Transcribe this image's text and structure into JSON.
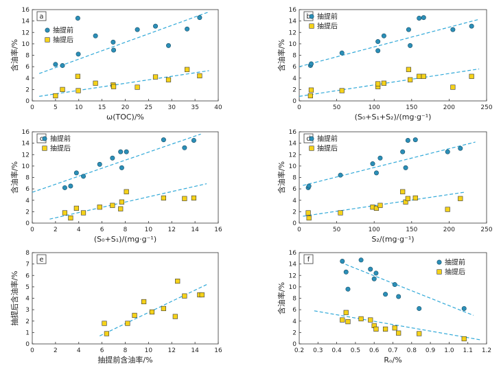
{
  "colors": {
    "before": "#2b8fb8",
    "after": "#f5d21a",
    "trend": "#2fa8d8",
    "axis": "#333333"
  },
  "chart_data": [
    {
      "id": "a",
      "type": "scatter",
      "xlabel": "ω(TOC)/%",
      "ylabel": "含油率/%",
      "xlim": [
        0,
        40
      ],
      "ylim": [
        0,
        16
      ],
      "xticks": [
        "0",
        "5",
        "10",
        "15",
        "20",
        "25",
        "30",
        "35",
        "40"
      ],
      "yticks": [
        "0",
        "2",
        "4",
        "6",
        "8",
        "10",
        "12",
        "14",
        "16"
      ],
      "legend": "left",
      "series": [
        {
          "name": "抽提前",
          "kind": "before",
          "points": [
            [
              5,
              6.4
            ],
            [
              6.5,
              6.2
            ],
            [
              9.8,
              14.5
            ],
            [
              9.9,
              8.2
            ],
            [
              13.6,
              11.4
            ],
            [
              17.4,
              10.3
            ],
            [
              17.5,
              8.9
            ],
            [
              22.6,
              12.5
            ],
            [
              26.5,
              13.1
            ],
            [
              29.3,
              9.7
            ],
            [
              33.3,
              12.6
            ],
            [
              36,
              14.6
            ]
          ],
          "trend": [
            [
              1.5,
              4.8
            ],
            [
              38,
              15.6
            ]
          ]
        },
        {
          "name": "抽提后",
          "kind": "after",
          "points": [
            [
              5,
              0.9
            ],
            [
              6.5,
              2
            ],
            [
              9.8,
              4.3
            ],
            [
              9.9,
              1.8
            ],
            [
              13.6,
              3.1
            ],
            [
              17.4,
              2.8
            ],
            [
              17.5,
              2.5
            ],
            [
              22.6,
              2.4
            ],
            [
              26.5,
              4.2
            ],
            [
              29.3,
              3.7
            ],
            [
              33.3,
              5.5
            ],
            [
              36,
              4.4
            ]
          ],
          "trend": [
            [
              1.5,
              0.8
            ],
            [
              38,
              5.3
            ]
          ]
        }
      ]
    },
    {
      "id": "b",
      "type": "scatter",
      "xlabel": "(S₀+S₁+S₂)/(mg·g⁻¹)",
      "ylabel": "含油率/%",
      "xlim": [
        0,
        250
      ],
      "ylim": [
        0,
        16
      ],
      "xticks": [
        "0",
        "50",
        "100",
        "150",
        "200",
        "250"
      ],
      "yticks": [
        "0",
        "2",
        "4",
        "6",
        "8",
        "10",
        "12",
        "14",
        "16"
      ],
      "legend": "top-left",
      "series": [
        {
          "name": "抽提前",
          "kind": "before",
          "points": [
            [
              15,
              6.2
            ],
            [
              16,
              6.5
            ],
            [
              57,
              8.4
            ],
            [
              105,
              8.8
            ],
            [
              105,
              10.4
            ],
            [
              113,
              11.4
            ],
            [
              146,
              12.5
            ],
            [
              148,
              9.7
            ],
            [
              160,
              14.5
            ],
            [
              166,
              14.6
            ],
            [
              205,
              12.5
            ],
            [
              230,
              13.1
            ]
          ],
          "trend": [
            [
              0,
              6
            ],
            [
              240,
              14.3
            ]
          ]
        },
        {
          "name": "抽提后",
          "kind": "after",
          "points": [
            [
              15,
              0.9
            ],
            [
              16,
              1.9
            ],
            [
              57,
              1.8
            ],
            [
              105,
              2.5
            ],
            [
              105,
              3
            ],
            [
              113,
              3.1
            ],
            [
              146,
              5.5
            ],
            [
              148,
              3.7
            ],
            [
              160,
              4.3
            ],
            [
              166,
              4.3
            ],
            [
              205,
              2.4
            ],
            [
              230,
              4.3
            ]
          ],
          "trend": [
            [
              0,
              0.8
            ],
            [
              240,
              5.6
            ]
          ]
        }
      ]
    },
    {
      "id": "c",
      "type": "scatter",
      "xlabel": "(S₀+S₁)/(mg·g⁻¹)",
      "ylabel": "含油率/%",
      "xlim": [
        0,
        16
      ],
      "ylim": [
        0,
        16
      ],
      "xticks": [
        "0",
        "2",
        "4",
        "6",
        "8",
        "10",
        "12",
        "14",
        "16"
      ],
      "yticks": [
        "0",
        "2",
        "4",
        "6",
        "8",
        "10",
        "12",
        "14",
        "16"
      ],
      "legend": "top-left",
      "series": [
        {
          "name": "抽提前",
          "kind": "before",
          "points": [
            [
              2.8,
              6.2
            ],
            [
              3.3,
              6.5
            ],
            [
              3.8,
              8.8
            ],
            [
              4.4,
              8.2
            ],
            [
              5.8,
              10.3
            ],
            [
              6.9,
              11.4
            ],
            [
              7.6,
              12.5
            ],
            [
              7.7,
              9.7
            ],
            [
              8.1,
              12.5
            ],
            [
              11.3,
              14.6
            ],
            [
              13.1,
              13.2
            ],
            [
              13.9,
              14.5
            ]
          ],
          "trend": [
            [
              0,
              5.4
            ],
            [
              14.5,
              15.6
            ]
          ]
        },
        {
          "name": "抽提后",
          "kind": "after",
          "points": [
            [
              2.8,
              1.8
            ],
            [
              3.3,
              0.9
            ],
            [
              3.8,
              2.6
            ],
            [
              4.4,
              1.8
            ],
            [
              5.8,
              2.8
            ],
            [
              6.9,
              3.1
            ],
            [
              7.6,
              2.5
            ],
            [
              7.7,
              3.7
            ],
            [
              8.1,
              5.5
            ],
            [
              11.3,
              4.4
            ],
            [
              13.1,
              4.3
            ],
            [
              13.9,
              4.4
            ]
          ],
          "trend": [
            [
              1.5,
              0.7
            ],
            [
              15,
              6.9
            ]
          ]
        }
      ]
    },
    {
      "id": "d",
      "type": "scatter",
      "xlabel": "S₂/(mg·g⁻¹)",
      "ylabel": "含油率/%",
      "xlim": [
        0,
        250
      ],
      "ylim": [
        0,
        16
      ],
      "xticks": [
        "0",
        "50",
        "100",
        "150",
        "200",
        "250"
      ],
      "yticks": [
        "0",
        "2",
        "4",
        "6",
        "8",
        "10",
        "12",
        "14",
        "16"
      ],
      "legend": "top-left",
      "series": [
        {
          "name": "抽提前",
          "kind": "before",
          "points": [
            [
              12,
              6.2
            ],
            [
              13,
              6.5
            ],
            [
              55,
              8.4
            ],
            [
              98,
              10.4
            ],
            [
              103,
              8.8
            ],
            [
              108,
              11.4
            ],
            [
              138,
              12.5
            ],
            [
              142,
              9.7
            ],
            [
              145,
              14.5
            ],
            [
              155,
              14.6
            ],
            [
              198,
              12.5
            ],
            [
              215,
              13.1
            ]
          ],
          "trend": [
            [
              5,
              6.6
            ],
            [
              235,
              14.2
            ]
          ]
        },
        {
          "name": "抽提后",
          "kind": "after",
          "points": [
            [
              12,
              1.8
            ],
            [
              13,
              0.9
            ],
            [
              55,
              1.8
            ],
            [
              98,
              2.8
            ],
            [
              103,
              2.6
            ],
            [
              108,
              3.1
            ],
            [
              138,
              5.5
            ],
            [
              142,
              3.7
            ],
            [
              145,
              4.3
            ],
            [
              155,
              4.4
            ],
            [
              198,
              2.4
            ],
            [
              215,
              4.3
            ]
          ],
          "trend": [
            [
              5,
              1.2
            ],
            [
              220,
              5.4
            ]
          ]
        }
      ]
    },
    {
      "id": "e",
      "type": "scatter",
      "xlabel": "抽提前含油率/%",
      "ylabel": "抽提后含油率/%",
      "xlim": [
        0,
        16
      ],
      "ylim": [
        0,
        8
      ],
      "xticks": [
        "0",
        "2",
        "4",
        "6",
        "8",
        "10",
        "12",
        "14",
        "16"
      ],
      "yticks": [
        "0",
        "1",
        "2",
        "3",
        "4",
        "5",
        "6",
        "7",
        "8"
      ],
      "legend": "none",
      "series": [
        {
          "name": "",
          "kind": "after",
          "points": [
            [
              6.2,
              1.8
            ],
            [
              6.4,
              0.9
            ],
            [
              8.2,
              1.8
            ],
            [
              8.8,
              2.5
            ],
            [
              9.6,
              3.7
            ],
            [
              10.3,
              2.8
            ],
            [
              11.3,
              3.1
            ],
            [
              12.3,
              2.4
            ],
            [
              12.5,
              5.5
            ],
            [
              13.1,
              4.2
            ],
            [
              14.4,
              4.3
            ],
            [
              14.6,
              4.3
            ]
          ],
          "trend": [
            [
              5.8,
              0.7
            ],
            [
              15,
              5.2
            ]
          ]
        }
      ]
    },
    {
      "id": "f",
      "type": "scatter",
      "xlabel": "Rₒ/%",
      "ylabel": "含油率/%",
      "xlim": [
        0.2,
        1.2
      ],
      "ylim": [
        0,
        16
      ],
      "xticks": [
        "0.2",
        "0.3",
        "0.4",
        "0.5",
        "0.6",
        "0.7",
        "0.8",
        "0.9",
        "1.0",
        "1.1",
        "1.2"
      ],
      "yticks": [
        "0",
        "2",
        "4",
        "6",
        "8",
        "10",
        "12",
        "14",
        "16"
      ],
      "legend": "right",
      "series": [
        {
          "name": "抽提前",
          "kind": "before",
          "points": [
            [
              0.43,
              14.5
            ],
            [
              0.45,
              12.6
            ],
            [
              0.46,
              9.6
            ],
            [
              0.53,
              14.7
            ],
            [
              0.58,
              13.1
            ],
            [
              0.6,
              11.4
            ],
            [
              0.61,
              12.4
            ],
            [
              0.66,
              8.7
            ],
            [
              0.71,
              10.4
            ],
            [
              0.73,
              8.3
            ],
            [
              0.84,
              6.2
            ],
            [
              1.08,
              6.2
            ]
          ],
          "trend": [
            [
              0.42,
              14.3
            ],
            [
              1.13,
              5
            ]
          ]
        },
        {
          "name": "抽提后",
          "kind": "after",
          "points": [
            [
              0.43,
              4.2
            ],
            [
              0.45,
              5.5
            ],
            [
              0.46,
              3.9
            ],
            [
              0.53,
              4.4
            ],
            [
              0.58,
              4.2
            ],
            [
              0.6,
              3.2
            ],
            [
              0.61,
              2.6
            ],
            [
              0.66,
              2.6
            ],
            [
              0.71,
              2.8
            ],
            [
              0.73,
              1.9
            ],
            [
              0.84,
              1.8
            ],
            [
              1.08,
              0.9
            ]
          ],
          "trend": [
            [
              0.28,
              5.8
            ],
            [
              1.17,
              0.7
            ]
          ]
        }
      ]
    }
  ]
}
